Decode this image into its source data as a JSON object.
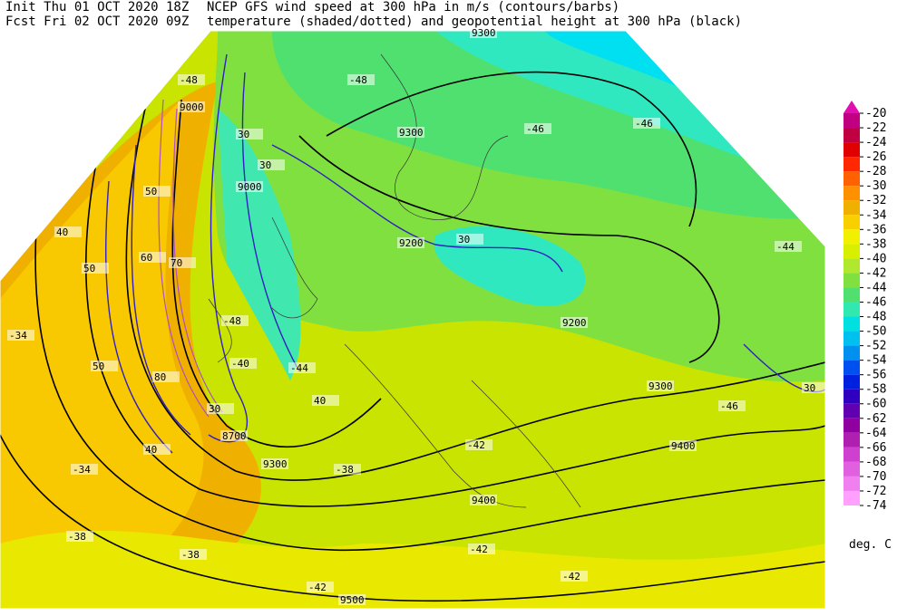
{
  "header": {
    "init": "Init  Thu 01 OCT 2020 18Z",
    "fcst": "Fcst Fri 02 OCT 2020 09Z",
    "title_line1": "NCEP GFS wind speed at 300 hPa in m/s (contours/barbs)",
    "title_line2": "temperature (shaded/dotted) and geopotential height at 300 hPa (black)"
  },
  "colorbar": {
    "labels": [
      -20,
      -22,
      -24,
      -26,
      -28,
      -30,
      -32,
      -34,
      -36,
      -38,
      -40,
      -42,
      -44,
      -46,
      -48,
      -50,
      -52,
      -54,
      -56,
      -58,
      -60,
      -62,
      -64,
      -66,
      -68,
      -70,
      -72,
      -74
    ],
    "colors": [
      "#e010b0",
      "#c00080",
      "#c00040",
      "#e00000",
      "#ff2800",
      "#ff6000",
      "#ff9000",
      "#f0b000",
      "#f8d000",
      "#f0f000",
      "#d8f000",
      "#b0e830",
      "#80e040",
      "#50e070",
      "#30e8b0",
      "#00e0e0",
      "#00c0f0",
      "#0090f0",
      "#0050f0",
      "#0020e0",
      "#3000c0",
      "#6000b0",
      "#9000a0",
      "#b020b0",
      "#d040d0",
      "#e060e0",
      "#f080f0",
      "#ffa0ff"
    ],
    "unit": "deg. C"
  },
  "map": {
    "height_labels": [
      "9000",
      "9000",
      "9200",
      "9200",
      "9300",
      "9300",
      "9300",
      "9400",
      "9400",
      "9500",
      "8700",
      "9300"
    ],
    "wind_labels": [
      "30",
      "30",
      "30",
      "40",
      "40",
      "50",
      "50",
      "60",
      "70",
      "80",
      "30",
      "40",
      "30",
      "50"
    ],
    "temp_labels": [
      "-34",
      "-34",
      "-38",
      "-38",
      "-42",
      "-42",
      "-42",
      "-44",
      "-44",
      "-46",
      "-46",
      "-46",
      "-48",
      "-48",
      "-48",
      "-40",
      "-38",
      "-42"
    ]
  }
}
